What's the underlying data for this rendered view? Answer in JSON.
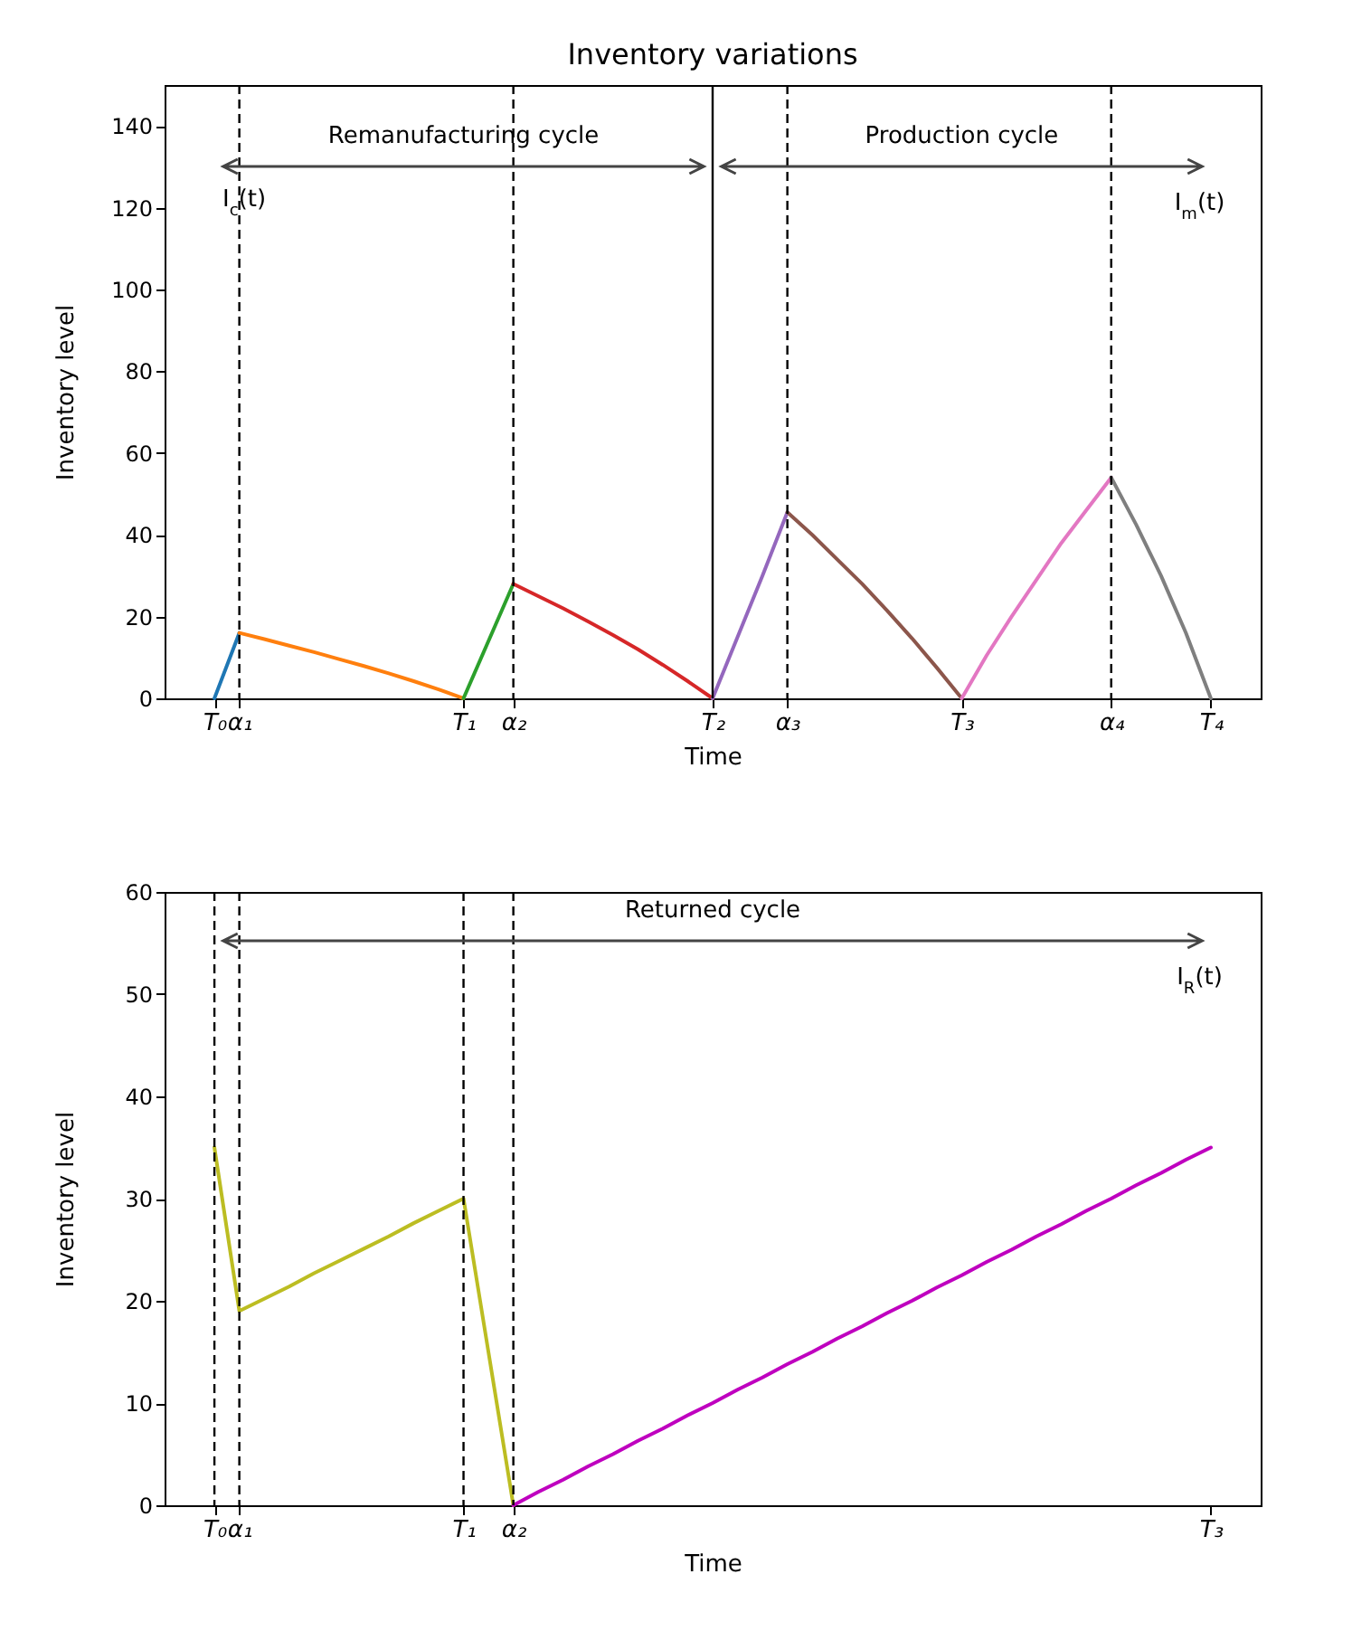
{
  "chart_data": [
    {
      "type": "line",
      "title": "Inventory variations",
      "xlabel": "Time",
      "ylabel": "Inventory level",
      "ylim": [
        0,
        150
      ],
      "categories": [
        "T₀",
        "α₁",
        null,
        null,
        null,
        null,
        null,
        null,
        null,
        null,
        "T₁",
        null,
        "α₂",
        null,
        null,
        null,
        null,
        null,
        null,
        null,
        "T₂",
        null,
        null,
        "α₃",
        null,
        null,
        null,
        null,
        null,
        null,
        "T₃",
        null,
        null,
        null,
        null,
        null,
        "α₄",
        null,
        null,
        null,
        "T₄"
      ],
      "yticks": [
        0,
        20,
        40,
        60,
        80,
        100,
        120,
        140
      ],
      "series": [
        {
          "color": "#1f77b4",
          "values": [
            0,
            16,
            null,
            null,
            null,
            null,
            null,
            null,
            null,
            null,
            null,
            null,
            null,
            null,
            null,
            null,
            null,
            null,
            null,
            null,
            null,
            null,
            null,
            null,
            null,
            null,
            null,
            null,
            null,
            null,
            null,
            null,
            null,
            null,
            null,
            null,
            null,
            null,
            null,
            null,
            null
          ]
        },
        {
          "color": "#ff7f0e",
          "values": [
            null,
            16,
            14.5,
            12.9,
            11.3,
            9.6,
            7.9,
            6.1,
            4.2,
            2.2,
            0,
            null,
            null,
            null,
            null,
            null,
            null,
            null,
            null,
            null,
            null,
            null,
            null,
            null,
            null,
            null,
            null,
            null,
            null,
            null,
            null,
            null,
            null,
            null,
            null,
            null,
            null,
            null,
            null,
            null,
            null
          ]
        },
        {
          "color": "#2ca02c",
          "values": [
            null,
            null,
            null,
            null,
            null,
            null,
            null,
            null,
            null,
            null,
            0,
            14,
            28,
            null,
            null,
            null,
            null,
            null,
            null,
            null,
            null,
            null,
            null,
            null,
            null,
            null,
            null,
            null,
            null,
            null,
            null,
            null,
            null,
            null,
            null,
            null,
            null,
            null,
            null,
            null,
            null
          ]
        },
        {
          "color": "#d62728",
          "values": [
            null,
            null,
            null,
            null,
            null,
            null,
            null,
            null,
            null,
            null,
            null,
            null,
            28,
            25,
            22,
            18.8,
            15.5,
            12,
            8.2,
            4.2,
            0,
            null,
            null,
            null,
            null,
            null,
            null,
            null,
            null,
            null,
            null,
            null,
            null,
            null,
            null,
            null,
            null,
            null,
            null,
            null,
            null
          ]
        },
        {
          "color": "#9467bd",
          "values": [
            null,
            null,
            null,
            null,
            null,
            null,
            null,
            null,
            null,
            null,
            null,
            null,
            null,
            null,
            null,
            null,
            null,
            null,
            null,
            null,
            0,
            15,
            30,
            45.5,
            null,
            null,
            null,
            null,
            null,
            null,
            null,
            null,
            null,
            null,
            null,
            null,
            null,
            null,
            null,
            null,
            null
          ]
        },
        {
          "color": "#8c564b",
          "values": [
            null,
            null,
            null,
            null,
            null,
            null,
            null,
            null,
            null,
            null,
            null,
            null,
            null,
            null,
            null,
            null,
            null,
            null,
            null,
            null,
            null,
            null,
            null,
            45.5,
            40,
            34,
            28,
            21.5,
            14.7,
            7.5,
            0,
            null,
            null,
            null,
            null,
            null,
            null,
            null,
            null,
            null,
            null
          ]
        },
        {
          "color": "#e377c2",
          "values": [
            null,
            null,
            null,
            null,
            null,
            null,
            null,
            null,
            null,
            null,
            null,
            null,
            null,
            null,
            null,
            null,
            null,
            null,
            null,
            null,
            null,
            null,
            null,
            null,
            null,
            null,
            null,
            null,
            null,
            null,
            0,
            10.5,
            20,
            29,
            38,
            46,
            54,
            null,
            null,
            null,
            null
          ]
        },
        {
          "color": "#7f7f7f",
          "values": [
            null,
            null,
            null,
            null,
            null,
            null,
            null,
            null,
            null,
            null,
            null,
            null,
            null,
            null,
            null,
            null,
            null,
            null,
            null,
            null,
            null,
            null,
            null,
            null,
            null,
            null,
            null,
            null,
            null,
            null,
            null,
            null,
            null,
            null,
            null,
            null,
            54,
            42.5,
            30,
            16,
            0
          ]
        }
      ],
      "ref_lines": [
        {
          "axis": "x",
          "value": "α₁",
          "color": "#000000",
          "line_style": "dashed"
        },
        {
          "axis": "x",
          "value": "α₂",
          "color": "#000000",
          "line_style": "dashed"
        },
        {
          "axis": "x",
          "value": "T₂",
          "color": "#000000",
          "line_style": "solid"
        },
        {
          "axis": "x",
          "value": "α₃",
          "color": "#000000",
          "line_style": "dashed"
        },
        {
          "axis": "x",
          "value": "α₄",
          "color": "#000000",
          "line_style": "dashed"
        }
      ],
      "annotations": [
        "Remanufacturing cycle",
        "Production cycle",
        "I$_{c}$(t)",
        "I$_{m}$(t)"
      ]
    },
    {
      "type": "line",
      "xlabel": "Time",
      "ylabel": "Inventory level",
      "ylim": [
        0,
        60
      ],
      "categories": [
        "T₀",
        "α₁",
        null,
        null,
        null,
        null,
        null,
        null,
        null,
        null,
        "T₁",
        null,
        "α₂",
        null,
        null,
        null,
        null,
        null,
        null,
        null,
        null,
        null,
        null,
        null,
        null,
        null,
        null,
        null,
        null,
        null,
        null,
        null,
        null,
        null,
        null,
        null,
        null,
        null,
        null,
        null,
        "T₃"
      ],
      "yticks": [
        0,
        10,
        20,
        30,
        40,
        50,
        60
      ],
      "series": [
        {
          "color": "#bcbd22",
          "values": [
            35,
            19,
            20.2,
            21.4,
            22.7,
            23.9,
            25.1,
            26.3,
            27.6,
            28.8,
            30,
            15,
            0,
            null,
            null,
            null,
            null,
            null,
            null,
            null,
            null,
            null,
            null,
            null,
            null,
            null,
            null,
            null,
            null,
            null,
            null,
            null,
            null,
            null,
            null,
            null,
            null,
            null,
            null,
            null,
            null
          ]
        },
        {
          "color": "#bf00bf",
          "values": [
            null,
            null,
            null,
            null,
            null,
            null,
            null,
            null,
            null,
            null,
            null,
            null,
            0,
            1.3,
            2.5,
            3.8,
            5,
            6.3,
            7.5,
            8.8,
            10,
            11.3,
            12.5,
            13.8,
            15,
            16.3,
            17.5,
            18.8,
            20,
            21.3,
            22.5,
            23.8,
            25,
            26.3,
            27.5,
            28.8,
            30,
            31.3,
            32.5,
            33.8,
            35
          ]
        }
      ],
      "ref_lines": [
        {
          "axis": "x",
          "value": "T₀",
          "color": "#000000",
          "line_style": "dashed"
        },
        {
          "axis": "x",
          "value": "α₁",
          "color": "#000000",
          "line_style": "dashed"
        },
        {
          "axis": "x",
          "value": "T₁",
          "color": "#000000",
          "line_style": "dashed"
        },
        {
          "axis": "x",
          "value": "α₂",
          "color": "#000000",
          "line_style": "dashed"
        }
      ],
      "annotations": [
        "Returned cycle",
        "I$_{R}$(t)"
      ]
    }
  ]
}
